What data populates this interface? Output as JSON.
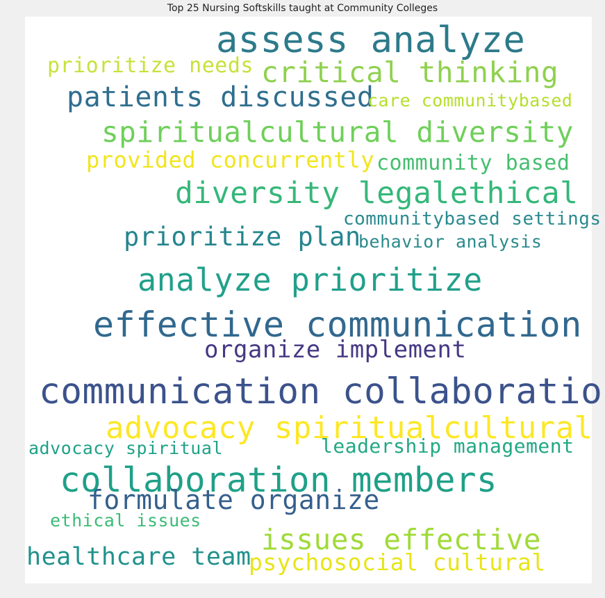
{
  "title": "Top 25 Nursing Softskills taught at Community Colleges",
  "colors": {
    "page_background": "#f0f0f0",
    "panel_background": "#ffffff"
  },
  "words": [
    {
      "text": "assess analyze",
      "color": "#2c7a8a"
    },
    {
      "text": "critical thinking",
      "color": "#8fd14f"
    },
    {
      "text": "prioritize needs",
      "color": "#c8e13a"
    },
    {
      "text": "patients discussed",
      "color": "#2f6e8e"
    },
    {
      "text": "care communitybased",
      "color": "#b5de2b"
    },
    {
      "text": "spiritualcultural diversity",
      "color": "#6fcf5a"
    },
    {
      "text": "provided concurrently",
      "color": "#f1e51d"
    },
    {
      "text": "community based",
      "color": "#45be6f"
    },
    {
      "text": "diversity legalethical",
      "color": "#35b779"
    },
    {
      "text": "communitybased settings",
      "color": "#2a8a8e"
    },
    {
      "text": "prioritize plan",
      "color": "#25858e"
    },
    {
      "text": "behavior analysis",
      "color": "#2b8a8c"
    },
    {
      "text": "analyze prioritize",
      "color": "#21a08a"
    },
    {
      "text": "effective communication",
      "color": "#31688e"
    },
    {
      "text": "organize implement",
      "color": "#443983"
    },
    {
      "text": "communication collaboration",
      "color": "#3b528b"
    },
    {
      "text": "advocacy spiritualcultural",
      "color": "#fde725"
    },
    {
      "text": "advocacy spiritual",
      "color": "#1fa187"
    },
    {
      "text": "leadership management",
      "color": "#22a884"
    },
    {
      "text": "collaboration members",
      "color": "#1fa088"
    },
    {
      "text": "formulate organize",
      "color": "#355f8d"
    },
    {
      "text": "ethical issues",
      "color": "#3bbb75"
    },
    {
      "text": "issues effective",
      "color": "#a0da39"
    },
    {
      "text": "healthcare team",
      "color": "#21918c"
    },
    {
      "text": "psychosocial cultural",
      "color": "#e8e419"
    }
  ]
}
